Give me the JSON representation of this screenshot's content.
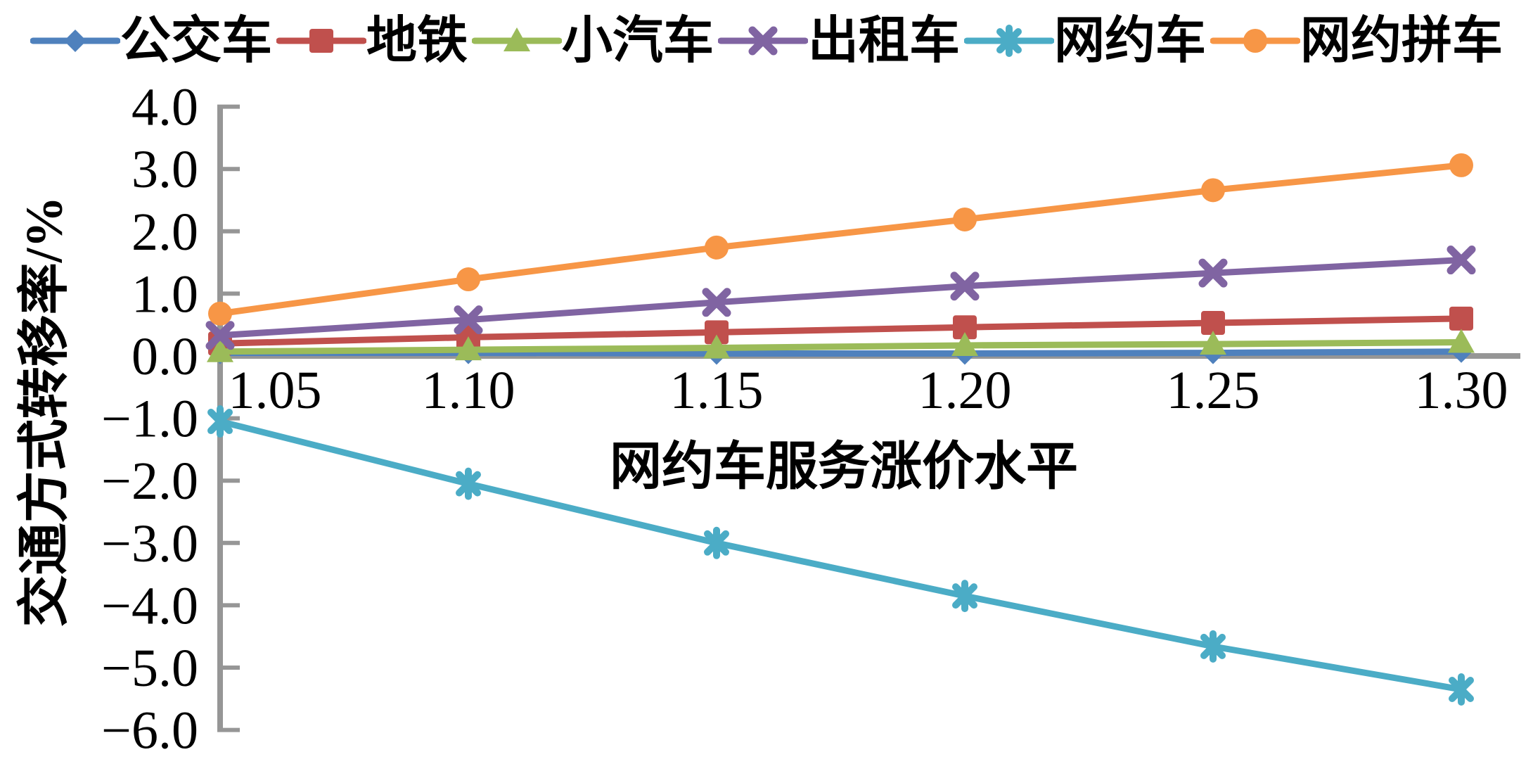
{
  "chart_data": {
    "type": "line",
    "title": "",
    "xlabel": "网约车服务涨价水平",
    "ylabel": "交通方式转移率/%",
    "x": [
      1.05,
      1.1,
      1.15,
      1.2,
      1.25,
      1.3
    ],
    "x_tick_labels": [
      "1.05",
      "1.10",
      "1.15",
      "1.20",
      "1.25",
      "1.30"
    ],
    "y_ticks": [
      4,
      3,
      2,
      1,
      0,
      -1,
      -2,
      -3,
      -4,
      -5,
      -6
    ],
    "y_tick_labels": [
      "4.0",
      "3.0",
      "2.0",
      "1.0",
      "0.0",
      "−1.0",
      "−2.0",
      "−3.0",
      "−4.0",
      "−5.0",
      "−6.0"
    ],
    "ylim": [
      -6.0,
      4.0
    ],
    "xlim": [
      1.05,
      1.3
    ],
    "grid": false,
    "legend_position": "top",
    "axis_color": "#969696",
    "series": [
      {
        "id": "bus",
        "name": "公交车",
        "color": "#4F81BD",
        "marker": "diamond",
        "values": [
          0.05,
          0.05,
          0.04,
          0.04,
          0.05,
          0.07
        ]
      },
      {
        "id": "subway",
        "name": "地铁",
        "color": "#C0504D",
        "marker": "square",
        "values": [
          0.2,
          0.3,
          0.38,
          0.46,
          0.53,
          0.6
        ]
      },
      {
        "id": "private-car",
        "name": "小汽车",
        "color": "#9BBB59",
        "marker": "triangle",
        "values": [
          0.07,
          0.1,
          0.13,
          0.17,
          0.19,
          0.22
        ]
      },
      {
        "id": "taxi",
        "name": "出租车",
        "color": "#8064A2",
        "marker": "x",
        "values": [
          0.33,
          0.58,
          0.86,
          1.12,
          1.33,
          1.54
        ]
      },
      {
        "id": "ride-hailing",
        "name": "网约车",
        "color": "#4BACC6",
        "marker": "asterisk",
        "values": [
          -1.05,
          -2.05,
          -3.0,
          -3.85,
          -4.66,
          -5.35
        ]
      },
      {
        "id": "ride-hailing-carpool",
        "name": "网约拼车",
        "color": "#F79646",
        "marker": "circle",
        "values": [
          0.68,
          1.23,
          1.74,
          2.19,
          2.66,
          3.06
        ]
      }
    ]
  }
}
